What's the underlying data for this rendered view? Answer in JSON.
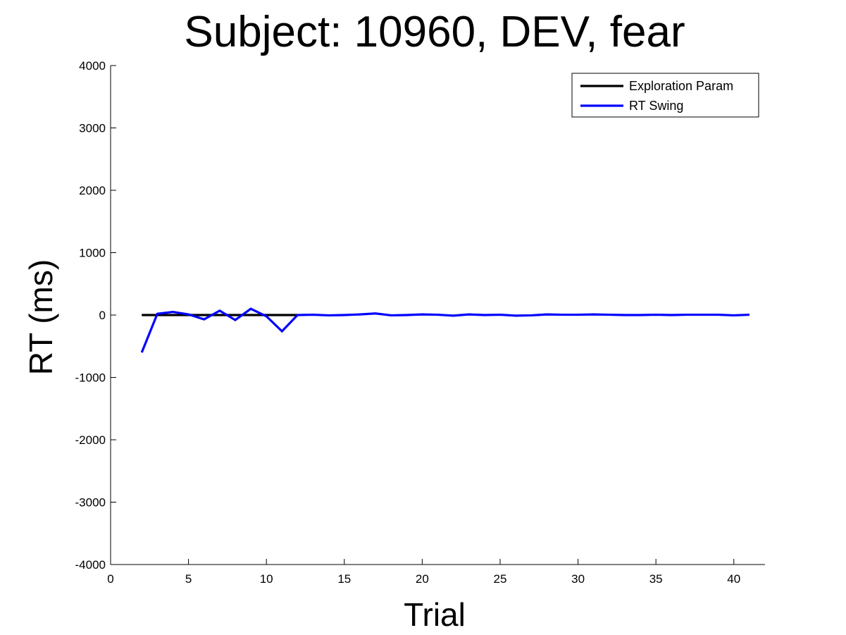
{
  "chart_data": {
    "type": "line",
    "title": "Subject: 10960, DEV, fear",
    "xlabel": "Trial",
    "ylabel": "RT (ms)",
    "xlim": [
      0,
      42
    ],
    "ylim": [
      -4000,
      4000
    ],
    "xticks": [
      0,
      5,
      10,
      15,
      20,
      25,
      30,
      35,
      40
    ],
    "yticks": [
      -4000,
      -3000,
      -2000,
      -1000,
      0,
      1000,
      2000,
      3000,
      4000
    ],
    "grid": false,
    "legend_position": "top-right",
    "series": [
      {
        "name": "Exploration Param",
        "color": "#000000",
        "x": [
          2,
          3,
          4,
          5,
          6,
          7,
          8,
          9,
          10,
          11,
          12
        ],
        "y": [
          0,
          0,
          0,
          0,
          0,
          0,
          0,
          0,
          0,
          0,
          0
        ]
      },
      {
        "name": "RT Swing",
        "color": "#0000ff",
        "x": [
          2,
          3,
          4,
          5,
          6,
          7,
          8,
          9,
          10,
          11,
          12,
          13,
          14,
          15,
          16,
          17,
          18,
          19,
          20,
          21,
          22,
          23,
          24,
          25,
          26,
          27,
          28,
          29,
          30,
          31,
          32,
          33,
          34,
          35,
          36,
          37,
          38,
          39,
          40,
          41
        ],
        "y": [
          -600,
          20,
          50,
          10,
          -70,
          70,
          -80,
          100,
          -20,
          -260,
          0,
          5,
          -5,
          0,
          10,
          25,
          -5,
          0,
          10,
          5,
          -10,
          10,
          0,
          5,
          -10,
          -5,
          10,
          5,
          5,
          10,
          5,
          0,
          0,
          5,
          0,
          5,
          5,
          5,
          -5,
          5
        ]
      }
    ]
  }
}
